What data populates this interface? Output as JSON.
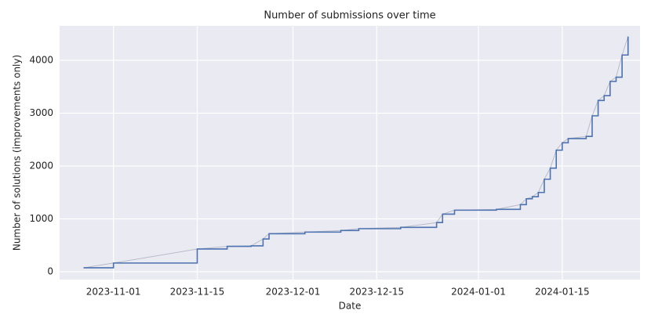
{
  "chart_data": {
    "type": "line",
    "title": "Number of submissions over time",
    "x_label": "Date",
    "y_label": "Number of solutions (improvements only)",
    "x": [
      "2023-10-27",
      "2023-11-01",
      "2023-11-15",
      "2023-11-20",
      "2023-11-24",
      "2023-11-26",
      "2023-11-27",
      "2023-12-03",
      "2023-12-09",
      "2023-12-12",
      "2023-12-19",
      "2023-12-25",
      "2023-12-26",
      "2023-12-28",
      "2024-01-04",
      "2024-01-08",
      "2024-01-09",
      "2024-01-10",
      "2024-01-11",
      "2024-01-12",
      "2024-01-13",
      "2024-01-14",
      "2024-01-15",
      "2024-01-16",
      "2024-01-19",
      "2024-01-20",
      "2024-01-21",
      "2024-01-22",
      "2024-01-23",
      "2024-01-24",
      "2024-01-25",
      "2024-01-26"
    ],
    "series": [
      {
        "color": "#4c72b0",
        "connector_color": "#b8bcc8",
        "drawstyle": "steps-post",
        "values": [
          75,
          165,
          430,
          480,
          490,
          620,
          720,
          750,
          780,
          815,
          840,
          930,
          1090,
          1165,
          1180,
          1270,
          1380,
          1420,
          1500,
          1750,
          1960,
          2300,
          2440,
          2520,
          2560,
          2950,
          3240,
          3330,
          3600,
          3680,
          4100,
          4450
        ]
      }
    ],
    "xlim": [
      "2023-10-23",
      "2024-01-28"
    ],
    "xticks": [
      "2023-11-01",
      "2023-11-15",
      "2023-12-01",
      "2023-12-15",
      "2024-01-01",
      "2024-01-15"
    ],
    "ylim": [
      -148,
      4652
    ],
    "yticks": [
      0,
      1000,
      2000,
      3000,
      4000
    ],
    "grid": true,
    "background": "#eaeaf2"
  }
}
